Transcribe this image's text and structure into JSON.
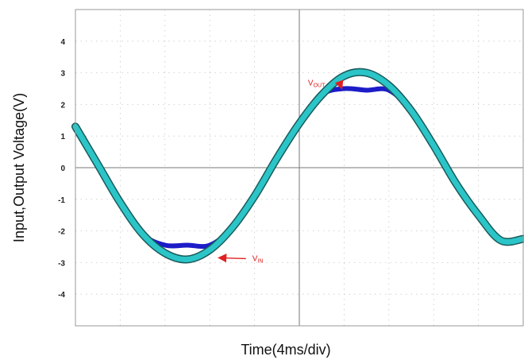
{
  "chart_data": {
    "type": "line",
    "xlabel": "Time(4ms/div)",
    "ylabel": "Input,Output Voltage(V)",
    "ylim": [
      -5,
      5
    ],
    "xlim": [
      0,
      40
    ],
    "y_ticks": [
      "4",
      "3",
      "2",
      "1",
      "0",
      "-1",
      "-2",
      "-3",
      "-4"
    ],
    "grid": true,
    "series": [
      {
        "name": "VIN",
        "color": "#2bc5c8",
        "x": [
          0,
          2,
          4,
          6,
          8,
          10,
          12,
          14,
          16,
          18,
          20,
          22,
          24,
          26,
          28,
          30,
          32,
          34,
          36,
          38,
          40
        ],
        "y": [
          1.3,
          0.1,
          -1.1,
          -2.1,
          -2.7,
          -2.9,
          -2.6,
          -1.9,
          -0.9,
          0.3,
          1.4,
          2.3,
          2.9,
          3.0,
          2.6,
          1.8,
          0.7,
          -0.5,
          -1.5,
          -2.3,
          -2.25
        ]
      },
      {
        "name": "VOUT",
        "color": "#1c1cc8",
        "x": [
          0,
          2,
          4,
          6,
          8,
          10,
          12,
          14,
          16,
          18,
          20,
          22,
          24,
          26,
          28,
          30,
          32,
          34,
          36,
          38,
          40
        ],
        "y": [
          1.3,
          0.1,
          -1.1,
          -2.1,
          -2.45,
          -2.45,
          -2.45,
          -1.9,
          -0.9,
          0.3,
          1.4,
          2.3,
          2.5,
          2.45,
          2.45,
          1.8,
          0.7,
          -0.5,
          -1.5,
          -2.3,
          -2.25
        ]
      }
    ],
    "annotations": [
      {
        "series_label": "V",
        "sub": "OUT",
        "x": 21.2,
        "y": 2.6,
        "arrow_to_x": 23.8,
        "arrow_to_y": 2.5
      },
      {
        "series_label": "V",
        "sub": "IN",
        "x": 15.8,
        "y": -2.95,
        "arrow_to_x": 12.8,
        "arrow_to_y": -2.85
      }
    ]
  }
}
